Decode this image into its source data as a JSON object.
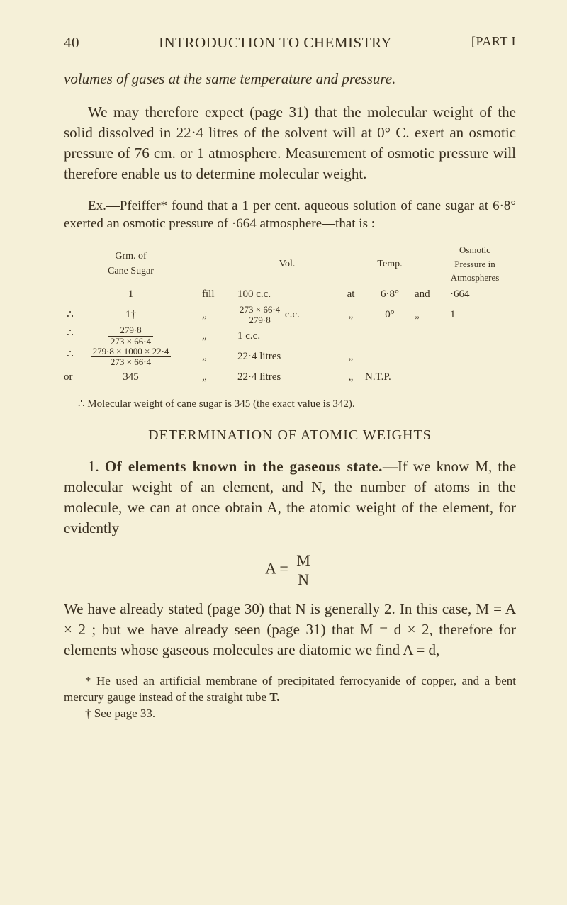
{
  "header": {
    "page_no": "40",
    "title": "INTRODUCTION TO CHEMISTRY",
    "part": "[PART I"
  },
  "para1_a": "volumes of gases at the same temperature and pressure.",
  "para2": "We may therefore expect (page 31) that the molecular weight of the solid dissolved in 22·4 litres of the solvent will at 0° C. exert an osmotic pressure of 76 cm. or 1 atmosphere. Measurement of osmotic pressure will therefore enable us to determine molecular weight.",
  "ex_para": "Ex.—Pfeiffer* found that a 1 per cent. aqueous solution of cane sugar at 6·8° exerted an osmotic pressure of ·664 atmosphere—that is :",
  "table": {
    "head": {
      "c1a": "Grm. of",
      "c1b": "Cane Sugar",
      "c2": "Vol.",
      "c3": "Temp.",
      "c4a": "Osmotic",
      "c4b": "Pressure in",
      "c4c": "Atmospheres"
    },
    "r1": {
      "c1": "1",
      "c2": "fill",
      "c3": "100 c.c.",
      "c4": "at",
      "c5": "6·8°",
      "c6": "and",
      "c7": "·664"
    },
    "r2": {
      "prefix": "∴",
      "c1": "1†",
      "c2": "„",
      "frac_num": "273 × 66·4",
      "frac_den": "279·8",
      "c3b": "c.c.",
      "c4": "„",
      "c5": "0°",
      "c6": "„",
      "c7": "1"
    },
    "r3": {
      "prefix": "∴",
      "frac_num": "279·8",
      "frac_den": "273 × 66·4",
      "c2": "„",
      "c3": "1 c.c."
    },
    "r4": {
      "prefix": "∴",
      "frac_num": "279·8 × 1000 × 22·4",
      "frac_den": "273 × 66·4",
      "c2": "„",
      "c3": "22·4 litres",
      "c4": "„"
    },
    "r5": {
      "c0": "or",
      "c1": "345",
      "c2": "„",
      "c3": "22·4 litres",
      "c4": "„",
      "c5": "N.T.P."
    }
  },
  "note_line": "∴ Molecular weight of cane sugar is 345 (the exact value is 342).",
  "section_head": "DETERMINATION OF ATOMIC WEIGHTS",
  "sec_para1_a": "1. ",
  "sec_para1_bold": "Of elements known in the gaseous state.",
  "sec_para1_b": "—If we know M, the molecular weight of an element, and N, the number of atoms in the molecule, we can at once obtain A, the atomic weight of the element, for evidently",
  "eq": {
    "lhs": "A =",
    "num": "M",
    "den": "N"
  },
  "sec_para2": "We have already stated (page 30) that N is generally 2.  In this case, M = A × 2 ;  but we have already seen (page 31) that M = d × 2, therefore for elements whose gaseous molecules are diatomic we find A = d,",
  "footnote1": "* He used an artificial membrane of precipitated ferrocyanide of copper, and a bent mercury gauge instead of the straight tube ",
  "footnote1_bold": "T.",
  "footnote2": "† See page 33."
}
